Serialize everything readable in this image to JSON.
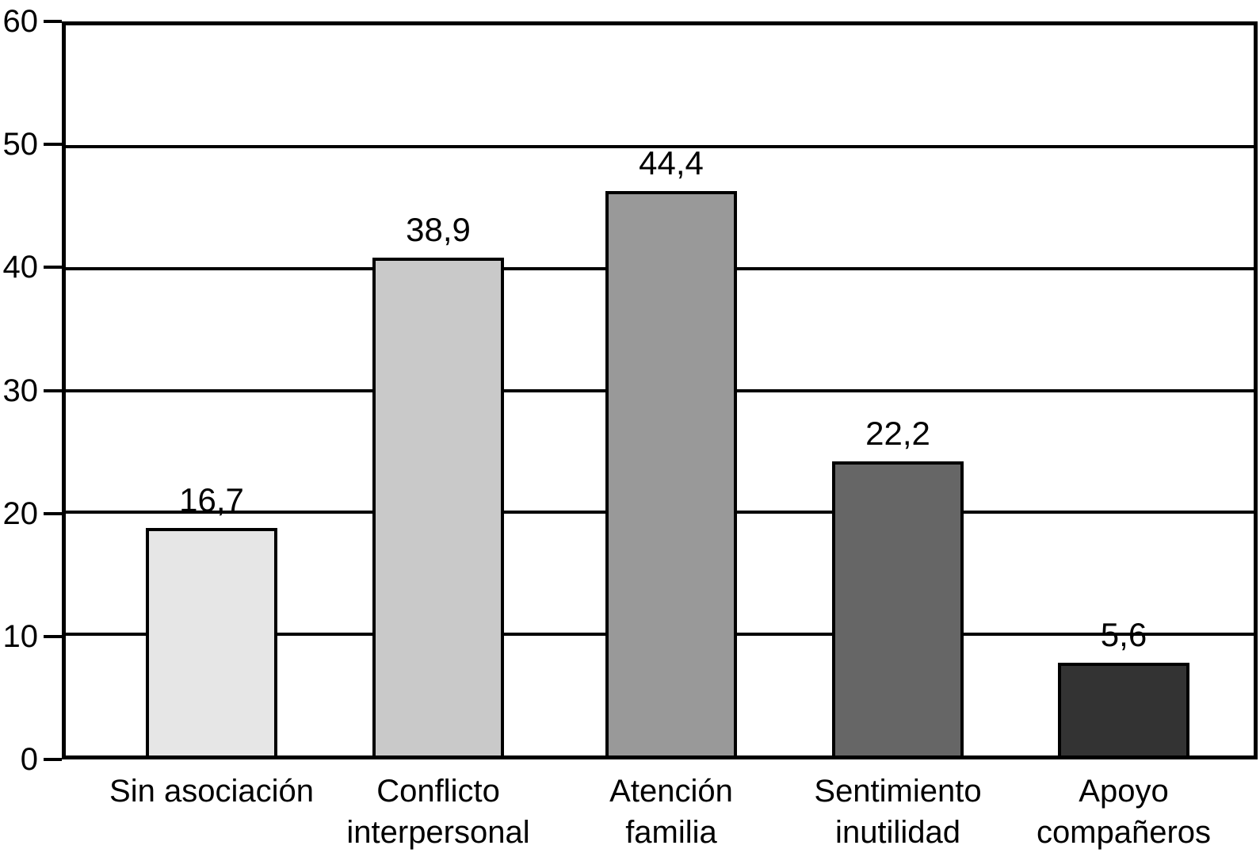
{
  "chart_data": {
    "type": "bar",
    "title": "",
    "xlabel": "",
    "ylabel": "",
    "categories": [
      "Sin asociación",
      "Conflicto interpersonal",
      "Atención familia",
      "Sentimiento inutilidad",
      "Apoyo compañeros"
    ],
    "category_labels": [
      "Sin asociación",
      "Conflicto\ninterpersonal",
      "Atención\nfamilia",
      "Sentimiento\ninutilidad",
      "Apoyo\ncompañeros"
    ],
    "values": [
      16.7,
      38.9,
      44.4,
      22.2,
      5.6
    ],
    "value_labels": [
      "16,7",
      "38,9",
      "44,4",
      "22,2",
      "5,6"
    ],
    "bar_colors": [
      "#e6e6e6",
      "#c9c9c9",
      "#999999",
      "#666666",
      "#333333"
    ],
    "bar_border_color": "#000000",
    "axis_color": "#000000",
    "background_color": "#ffffff",
    "ylim": [
      0,
      60
    ],
    "yticks": [
      60,
      50,
      40,
      30,
      20,
      10,
      0
    ],
    "grid": true,
    "legend": false,
    "bar_visual_offset": 2
  }
}
